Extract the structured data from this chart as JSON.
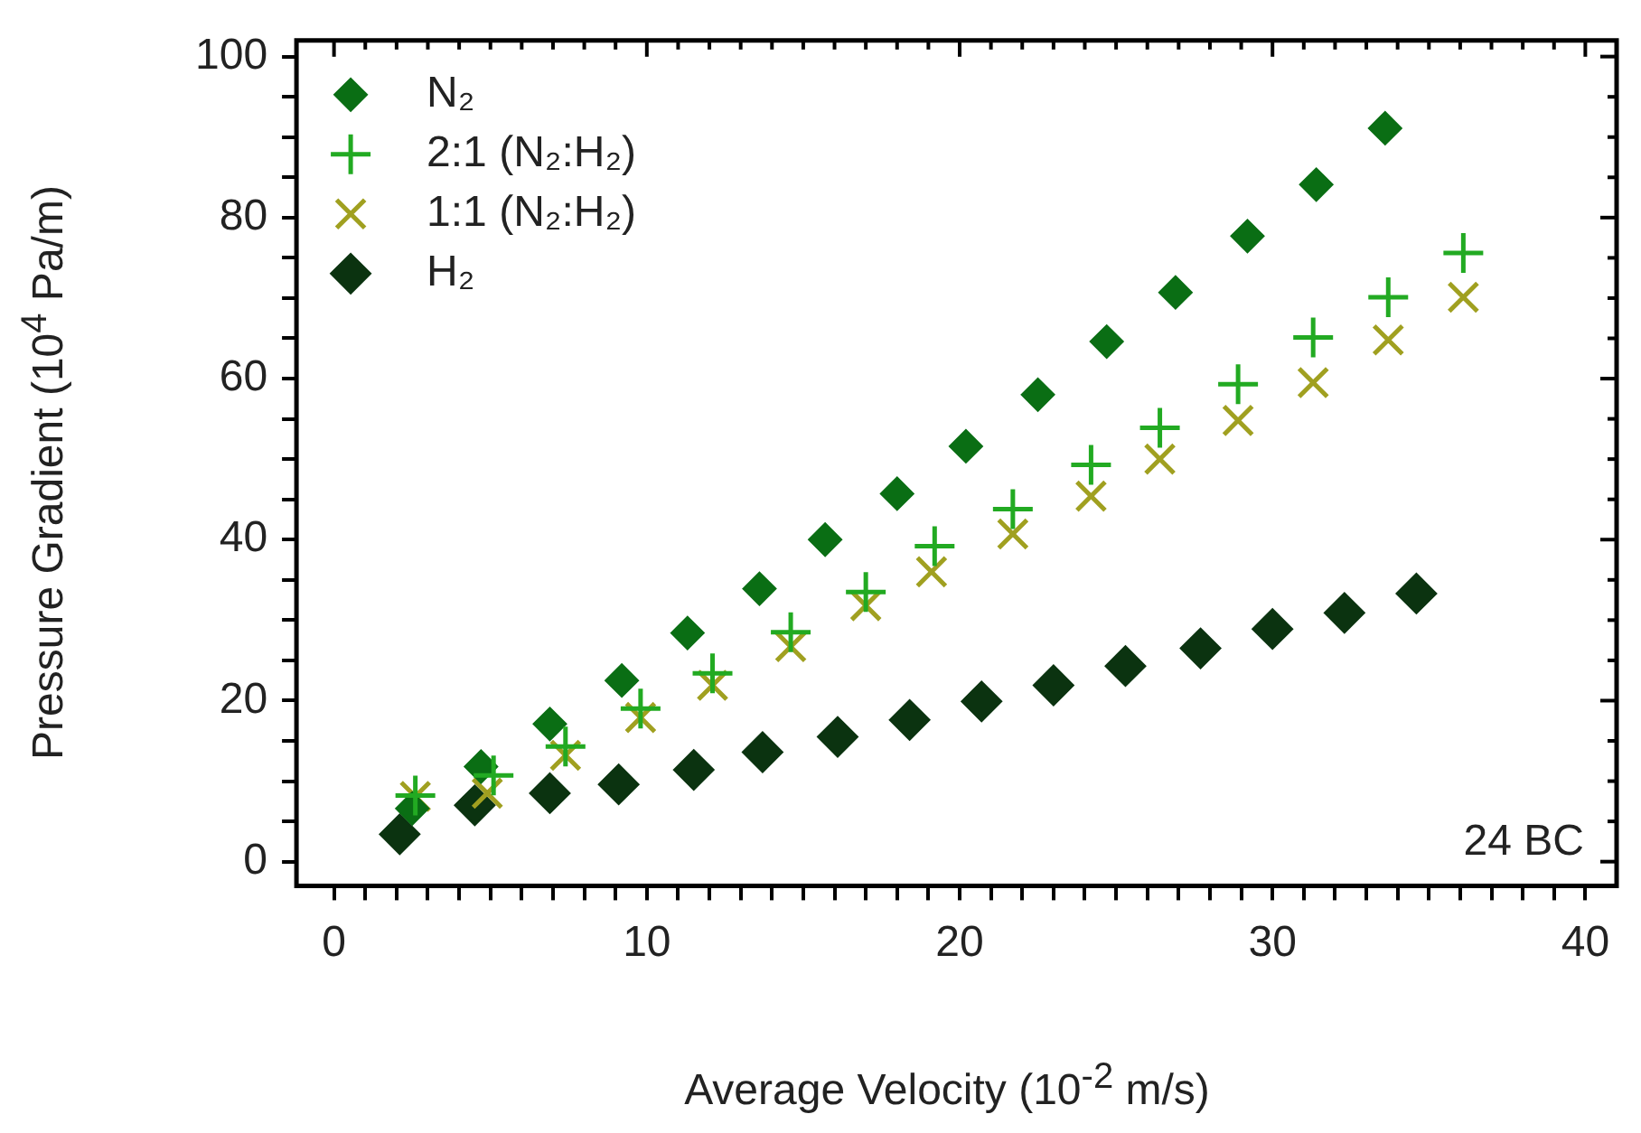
{
  "chart_data": {
    "type": "scatter",
    "xlabel": "Average Velocity (10$^{-2}$ m/s)",
    "ylabel": "Pressure Gradient (10$^{4}$ Pa/m)",
    "xlim": [
      -1.2,
      41
    ],
    "ylim": [
      -3,
      102
    ],
    "xticks": [
      0,
      {
        "value": 1,
        "label": null
      },
      {
        "value": 2,
        "label": null
      },
      {
        "value": 3,
        "label": null
      },
      {
        "value": 4,
        "label": null
      },
      {
        "value": 5,
        "label": null
      },
      {
        "value": 6,
        "label": null
      },
      {
        "value": 7,
        "label": null
      },
      {
        "value": 8,
        "label": null
      },
      {
        "value": 9,
        "label": null
      },
      10,
      {
        "value": 11,
        "label": null
      },
      {
        "value": 12,
        "label": null
      },
      {
        "value": 13,
        "label": null
      },
      {
        "value": 14,
        "label": null
      },
      {
        "value": 15,
        "label": null
      },
      {
        "value": 16,
        "label": null
      },
      {
        "value": 17,
        "label": null
      },
      {
        "value": 18,
        "label": null
      },
      {
        "value": 19,
        "label": null
      },
      20,
      {
        "value": 21,
        "label": null
      },
      {
        "value": 22,
        "label": null
      },
      {
        "value": 23,
        "label": null
      },
      {
        "value": 24,
        "label": null
      },
      {
        "value": 25,
        "label": null
      },
      {
        "value": 26,
        "label": null
      },
      {
        "value": 27,
        "label": null
      },
      {
        "value": 28,
        "label": null
      },
      {
        "value": 29,
        "label": null
      },
      30,
      {
        "value": 31,
        "label": null
      },
      {
        "value": 32,
        "label": null
      },
      {
        "value": 33,
        "label": null
      },
      {
        "value": 34,
        "label": null
      },
      {
        "value": 35,
        "label": null
      },
      {
        "value": 36,
        "label": null
      },
      {
        "value": 37,
        "label": null
      },
      {
        "value": 38,
        "label": null
      },
      {
        "value": 39,
        "label": null
      },
      40
    ],
    "yticks": [
      0,
      {
        "value": 5,
        "label": null
      },
      {
        "value": 10,
        "label": null
      },
      {
        "value": 15,
        "label": null
      },
      20,
      {
        "value": 25,
        "label": null
      },
      {
        "value": 30,
        "label": null
      },
      {
        "value": 35,
        "label": null
      },
      40,
      {
        "value": 45,
        "label": null
      },
      {
        "value": 50,
        "label": null
      },
      {
        "value": 55,
        "label": null
      },
      60,
      {
        "value": 65,
        "label": null
      },
      {
        "value": 70,
        "label": null
      },
      {
        "value": 75,
        "label": null
      },
      80,
      {
        "value": 85,
        "label": null
      },
      {
        "value": 90,
        "label": null
      },
      {
        "value": 95,
        "label": null
      },
      100
    ],
    "grid": false,
    "legend": "top left",
    "annotations": [
      "24 BC"
    ],
    "series": [
      {
        "name": "N₂",
        "color": "#0a6e14",
        "marker": "diamond",
        "x": [
          2.5,
          4.7,
          6.9,
          9.2,
          11.3,
          13.6,
          15.7,
          18.0,
          20.2,
          22.5,
          24.7,
          26.9,
          29.2,
          31.4,
          33.6
        ],
        "values": [
          6.6,
          11.8,
          17.1,
          22.5,
          28.4,
          33.9,
          40.0,
          45.7,
          51.6,
          58.0,
          64.6,
          70.7,
          77.7,
          84.1,
          91.1
        ]
      },
      {
        "name": "2:1 (N₂:H₂)",
        "color": "#22aa22",
        "marker": "cross",
        "x": [
          2.6,
          5.1,
          7.4,
          9.8,
          12.1,
          14.6,
          17.0,
          19.2,
          21.7,
          24.2,
          26.4,
          28.9,
          31.3,
          33.7,
          36.1
        ],
        "values": [
          8.2,
          10.7,
          14.3,
          19.0,
          23.4,
          28.5,
          33.5,
          39.2,
          43.8,
          49.3,
          53.9,
          59.3,
          65.1,
          70.1,
          75.6
        ]
      },
      {
        "name": "1:1 (N₂:H₂)",
        "color": "#a0a020",
        "marker": "x",
        "x": [
          2.6,
          4.9,
          7.4,
          9.8,
          12.1,
          14.6,
          17.0,
          19.1,
          21.7,
          24.2,
          26.4,
          28.9,
          31.3,
          33.7,
          36.1
        ],
        "values": [
          8.1,
          8.5,
          13.2,
          17.9,
          21.9,
          26.7,
          31.8,
          36.0,
          40.7,
          45.4,
          50.0,
          54.8,
          59.5,
          64.8,
          70.1
        ]
      },
      {
        "name": "H₂",
        "color": "#0b3310",
        "marker": "diamond",
        "x": [
          2.1,
          4.5,
          6.9,
          9.1,
          11.5,
          13.7,
          16.1,
          18.4,
          20.7,
          23.0,
          25.3,
          27.7,
          30.0,
          32.3,
          34.6
        ],
        "values": [
          3.4,
          7.0,
          8.5,
          9.6,
          11.4,
          13.6,
          15.5,
          17.6,
          19.9,
          21.9,
          24.3,
          26.5,
          28.9,
          30.9,
          33.3
        ]
      }
    ]
  }
}
